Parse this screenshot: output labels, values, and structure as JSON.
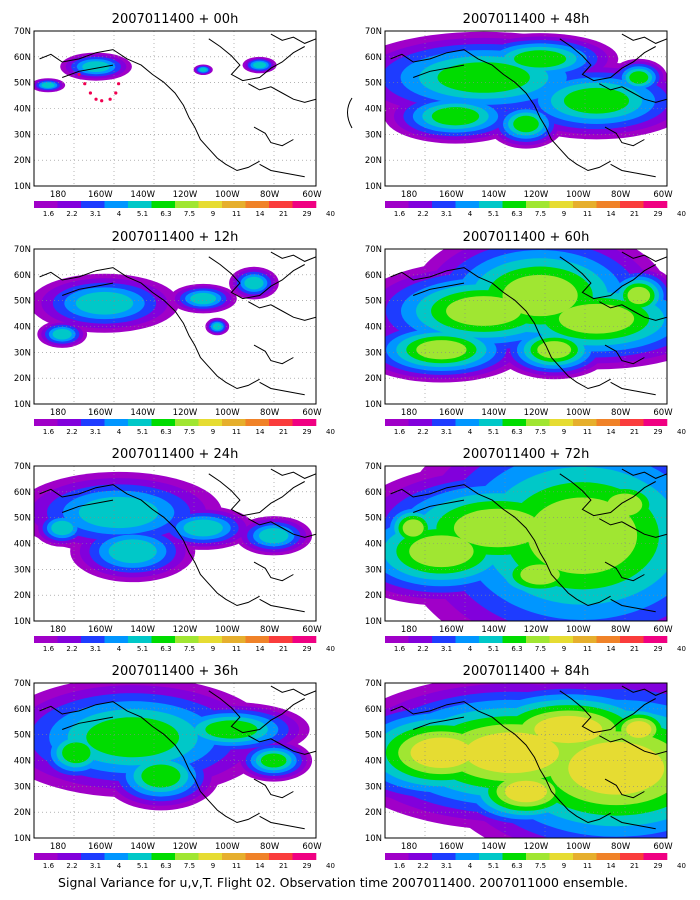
{
  "caption": "Signal Variance for u,v,T. Flight 02. Observation time 2007011400. 2007011000 ensemble.",
  "panels": [
    {
      "title": "2007011400 + 00h",
      "level": 0.6,
      "blobs": [
        [
          0.22,
          0.23,
          0.14,
          0.1,
          1.2
        ],
        [
          0.05,
          0.35,
          0.08,
          0.06,
          1.0
        ],
        [
          0.6,
          0.25,
          0.05,
          0.05,
          0.9
        ],
        [
          0.8,
          0.22,
          0.08,
          0.07,
          1.0
        ]
      ],
      "track": true
    },
    {
      "title": "2007011400 + 48h",
      "level": 1.0,
      "blobs": [
        [
          0.35,
          0.3,
          0.3,
          0.18,
          1.3
        ],
        [
          0.55,
          0.18,
          0.2,
          0.12,
          1.1
        ],
        [
          0.25,
          0.55,
          0.2,
          0.14,
          1.0
        ],
        [
          0.75,
          0.45,
          0.25,
          0.18,
          1.1
        ],
        [
          0.5,
          0.6,
          0.12,
          0.14,
          0.9
        ],
        [
          0.9,
          0.3,
          0.1,
          0.12,
          0.8
        ]
      ],
      "track": false
    },
    {
      "title": "2007011400 + 12h",
      "level": 0.7,
      "blobs": [
        [
          0.25,
          0.35,
          0.25,
          0.18,
          1.2
        ],
        [
          0.1,
          0.55,
          0.1,
          0.1,
          1.0
        ],
        [
          0.78,
          0.22,
          0.1,
          0.12,
          1.0
        ],
        [
          0.6,
          0.32,
          0.15,
          0.12,
          0.9
        ],
        [
          0.65,
          0.5,
          0.06,
          0.08,
          0.8
        ]
      ],
      "track": false
    },
    {
      "title": "2007011400 + 60h",
      "level": 1.2,
      "blobs": [
        [
          0.55,
          0.3,
          0.2,
          0.2,
          1.5
        ],
        [
          0.35,
          0.4,
          0.25,
          0.18,
          1.2
        ],
        [
          0.75,
          0.45,
          0.25,
          0.18,
          1.2
        ],
        [
          0.2,
          0.65,
          0.2,
          0.14,
          1.0
        ],
        [
          0.6,
          0.65,
          0.15,
          0.14,
          0.9
        ],
        [
          0.9,
          0.3,
          0.1,
          0.14,
          0.9
        ]
      ],
      "track": false
    },
    {
      "title": "2007011400 + 24h",
      "level": 0.8,
      "blobs": [
        [
          0.3,
          0.3,
          0.28,
          0.2,
          1.3
        ],
        [
          0.35,
          0.55,
          0.2,
          0.18,
          1.1
        ],
        [
          0.6,
          0.4,
          0.18,
          0.14,
          1.0
        ],
        [
          0.85,
          0.45,
          0.15,
          0.14,
          0.9
        ],
        [
          0.1,
          0.4,
          0.1,
          0.12,
          1.0
        ]
      ],
      "track": false
    },
    {
      "title": "2007011400 + 72h",
      "level": 1.4,
      "blobs": [
        [
          0.7,
          0.45,
          0.22,
          0.28,
          1.7
        ],
        [
          0.4,
          0.4,
          0.25,
          0.2,
          1.2
        ],
        [
          0.2,
          0.55,
          0.2,
          0.18,
          1.1
        ],
        [
          0.85,
          0.25,
          0.12,
          0.14,
          1.0
        ],
        [
          0.55,
          0.7,
          0.15,
          0.14,
          0.9
        ],
        [
          0.1,
          0.4,
          0.08,
          0.12,
          0.9
        ]
      ],
      "track": false
    },
    {
      "title": "2007011400 + 36h",
      "level": 1.0,
      "blobs": [
        [
          0.35,
          0.35,
          0.28,
          0.22,
          1.4
        ],
        [
          0.45,
          0.6,
          0.15,
          0.16,
          1.1
        ],
        [
          0.7,
          0.3,
          0.22,
          0.14,
          1.0
        ],
        [
          0.15,
          0.45,
          0.12,
          0.16,
          1.0
        ],
        [
          0.85,
          0.5,
          0.12,
          0.12,
          0.9
        ]
      ],
      "track": false
    },
    {
      "title": "2007011400 + 84h",
      "level": 1.5,
      "blobs": [
        [
          0.82,
          0.55,
          0.18,
          0.18,
          1.9
        ],
        [
          0.45,
          0.45,
          0.28,
          0.22,
          1.2
        ],
        [
          0.2,
          0.45,
          0.2,
          0.18,
          1.1
        ],
        [
          0.65,
          0.3,
          0.22,
          0.16,
          1.1
        ],
        [
          0.5,
          0.7,
          0.15,
          0.14,
          1.0
        ],
        [
          0.9,
          0.3,
          0.1,
          0.12,
          0.9
        ]
      ],
      "track": false
    }
  ],
  "axes": {
    "lat_labels": [
      "70N",
      "60N",
      "50N",
      "40N",
      "30N",
      "20N",
      "10N"
    ],
    "lon_labels": [
      "180",
      "160W",
      "140W",
      "120W",
      "100W",
      "80W",
      "60W"
    ]
  },
  "colorbar": {
    "labels": [
      "1.6",
      "2.2",
      "3.1",
      "4",
      "5.1",
      "6.3",
      "7.5",
      "9",
      "11",
      "14",
      "21",
      "29",
      "40"
    ],
    "colors": [
      "#a000c8",
      "#8200dc",
      "#1e3cff",
      "#0096ff",
      "#00c8c8",
      "#00dc00",
      "#a0e632",
      "#e6dc32",
      "#e6af2d",
      "#f08228",
      "#fa3c3c",
      "#f00082"
    ]
  },
  "fill_colors": [
    "#a000c8",
    "#8200dc",
    "#1e3cff",
    "#0096ff",
    "#00c8c8",
    "#00dc00",
    "#a0e632",
    "#e6dc32"
  ]
}
